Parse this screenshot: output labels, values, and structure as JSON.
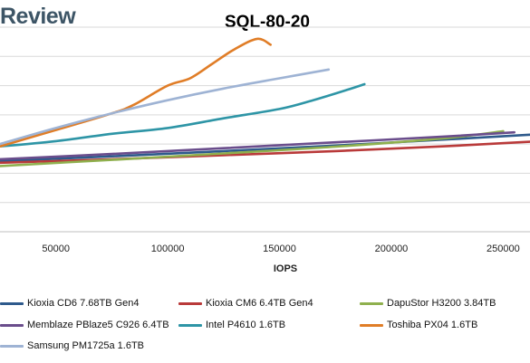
{
  "brand": {
    "text": "Review",
    "color": "#3d5566"
  },
  "chart_data": {
    "type": "line",
    "title": "SQL-80-20",
    "xlabel": "IOPS",
    "ylabel": "",
    "xlim": [
      25000,
      262000
    ],
    "ylim": [
      0,
      7
    ],
    "x_ticks": [
      50000,
      100000,
      150000,
      200000,
      250000
    ],
    "y_tick_labels_visible": false,
    "grid": "horizontal",
    "legend_placement": "bottom",
    "series": [
      {
        "name": "Kioxia CD6 7.68TB Gen4",
        "color": "#2e5a8c",
        "x": [
          25000,
          75000,
          125000,
          175000,
          225000,
          262000
        ],
        "y": [
          2.42,
          2.58,
          2.76,
          2.95,
          3.16,
          3.32
        ]
      },
      {
        "name": "Kioxia CM6 6.4TB Gen4",
        "color": "#b93a3a",
        "x": [
          25000,
          75000,
          125000,
          175000,
          225000,
          262000
        ],
        "y": [
          2.36,
          2.48,
          2.62,
          2.76,
          2.93,
          3.08
        ]
      },
      {
        "name": "DapuStor H3200 3.84TB",
        "color": "#8fb04e",
        "x": [
          25000,
          75000,
          125000,
          175000,
          225000,
          250000
        ],
        "y": [
          2.25,
          2.46,
          2.68,
          2.91,
          3.21,
          3.44
        ]
      },
      {
        "name": "Memblaze PBlaze5 C926 6.4TB",
        "color": "#6a4d8c",
        "x": [
          25000,
          75000,
          125000,
          175000,
          225000,
          255000
        ],
        "y": [
          2.48,
          2.66,
          2.86,
          3.06,
          3.26,
          3.4
        ]
      },
      {
        "name": "Intel P4610 1.6TB",
        "color": "#2e95a6",
        "x": [
          25000,
          50000,
          75000,
          100000,
          125000,
          150000,
          165000,
          180000,
          188000
        ],
        "y": [
          2.92,
          3.1,
          3.35,
          3.55,
          3.88,
          4.2,
          4.5,
          4.85,
          5.05
        ]
      },
      {
        "name": "Toshiba PX04 1.6TB",
        "color": "#e07d27",
        "x": [
          25000,
          50000,
          75000,
          85000,
          100000,
          110000,
          120000,
          130000,
          140000,
          146000
        ],
        "y": [
          2.92,
          3.48,
          4.05,
          4.35,
          5.0,
          5.25,
          5.75,
          6.25,
          6.6,
          6.4
        ]
      },
      {
        "name": "Samsung PM1725a 1.6TB",
        "color": "#9eb3d4",
        "x": [
          25000,
          50000,
          75000,
          100000,
          125000,
          150000,
          172000
        ],
        "y": [
          3.0,
          3.55,
          4.05,
          4.5,
          4.9,
          5.25,
          5.55
        ]
      }
    ]
  }
}
